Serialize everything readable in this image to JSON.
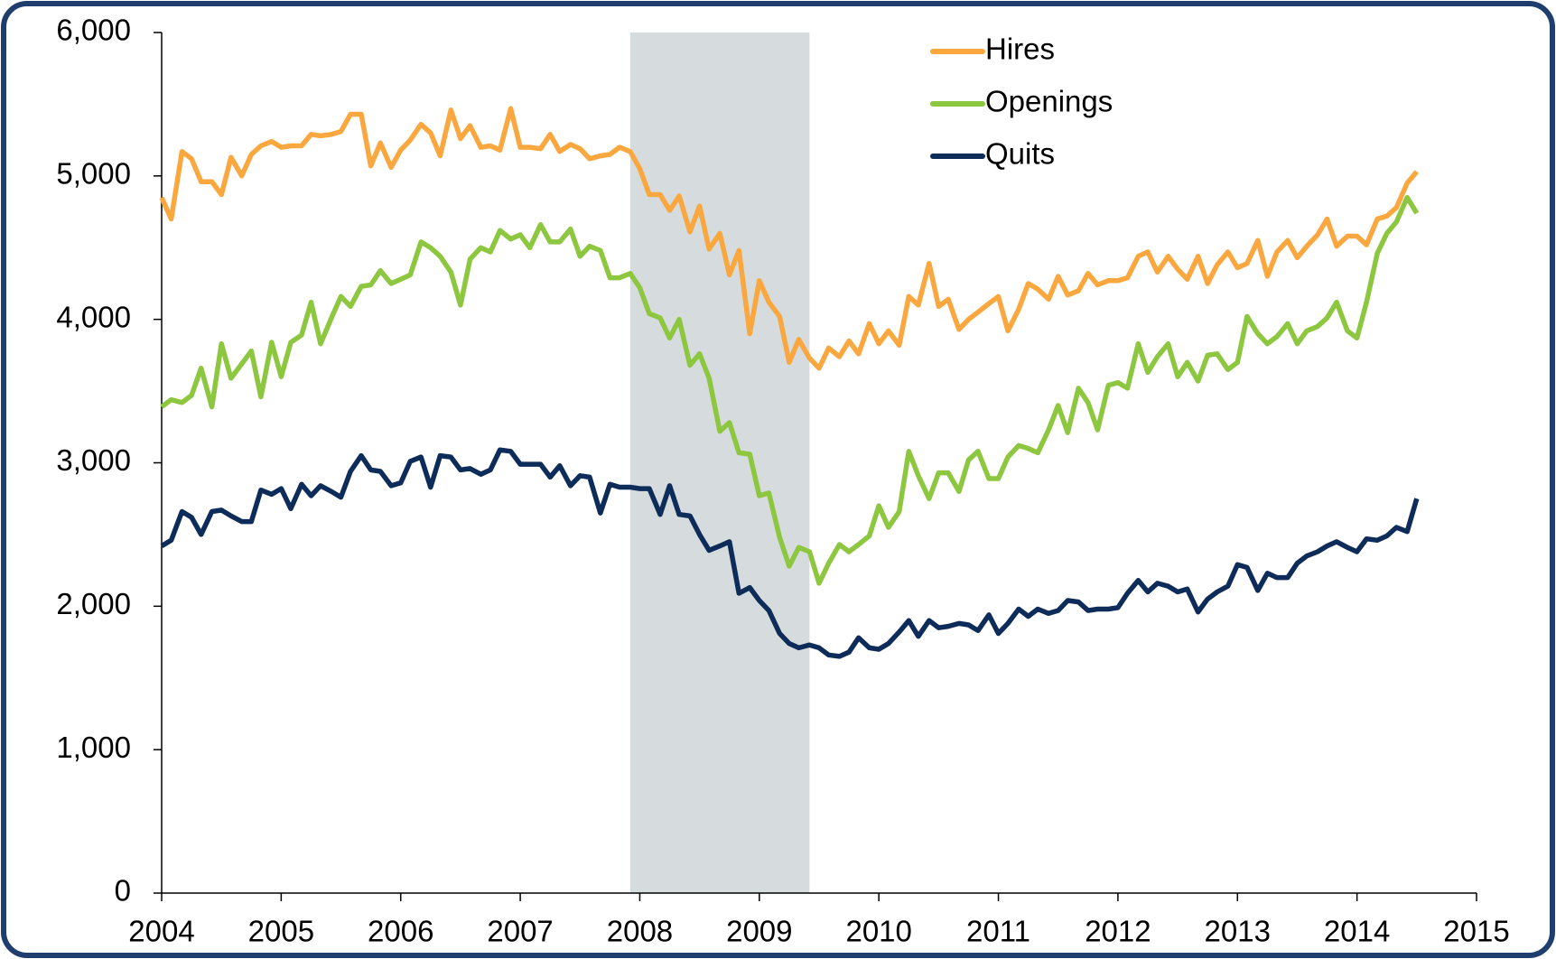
{
  "chart_data": {
    "type": "line",
    "x": [
      2004.0,
      2004.08,
      2004.17,
      2004.25,
      2004.33,
      2004.42,
      2004.5,
      2004.58,
      2004.67,
      2004.75,
      2004.83,
      2004.92,
      2005.0,
      2005.08,
      2005.17,
      2005.25,
      2005.33,
      2005.42,
      2005.5,
      2005.58,
      2005.67,
      2005.75,
      2005.83,
      2005.92,
      2006.0,
      2006.08,
      2006.17,
      2006.25,
      2006.33,
      2006.42,
      2006.5,
      2006.58,
      2006.67,
      2006.75,
      2006.83,
      2006.92,
      2007.0,
      2007.08,
      2007.17,
      2007.25,
      2007.33,
      2007.42,
      2007.5,
      2007.58,
      2007.67,
      2007.75,
      2007.83,
      2007.92,
      2008.0,
      2008.08,
      2008.17,
      2008.25,
      2008.33,
      2008.42,
      2008.5,
      2008.58,
      2008.67,
      2008.75,
      2008.83,
      2008.92,
      2009.0,
      2009.08,
      2009.17,
      2009.25,
      2009.33,
      2009.42,
      2009.5,
      2009.58,
      2009.67,
      2009.75,
      2009.83,
      2009.92,
      2010.0,
      2010.08,
      2010.17,
      2010.25,
      2010.33,
      2010.42,
      2010.5,
      2010.58,
      2010.67,
      2010.75,
      2010.83,
      2010.92,
      2011.0,
      2011.08,
      2011.17,
      2011.25,
      2011.33,
      2011.42,
      2011.5,
      2011.58,
      2011.67,
      2011.75,
      2011.83,
      2011.92,
      2012.0,
      2012.08,
      2012.17,
      2012.25,
      2012.33,
      2012.42,
      2012.5,
      2012.58,
      2012.67,
      2012.75,
      2012.83,
      2012.92,
      2013.0,
      2013.08,
      2013.17,
      2013.25,
      2013.33,
      2013.42,
      2013.5,
      2013.58,
      2013.67,
      2013.75,
      2013.83,
      2013.92,
      2014.0,
      2014.08,
      2014.17,
      2014.25,
      2014.33,
      2014.42,
      2014.5
    ],
    "series": [
      {
        "name": "Hires",
        "color": "#f9a73e",
        "values": [
          4850,
          4700,
          5170,
          5120,
          4960,
          4960,
          4870,
          5130,
          5000,
          5150,
          5210,
          5240,
          5200,
          5210,
          5210,
          5290,
          5280,
          5290,
          5310,
          5430,
          5430,
          5070,
          5230,
          5060,
          5180,
          5250,
          5360,
          5300,
          5140,
          5460,
          5260,
          5350,
          5200,
          5210,
          5180,
          5470,
          5200,
          5200,
          5190,
          5290,
          5170,
          5220,
          5190,
          5120,
          5140,
          5150,
          5200,
          5170,
          5050,
          4870,
          4870,
          4760,
          4860,
          4610,
          4790,
          4490,
          4600,
          4310,
          4480,
          3900,
          4270,
          4120,
          4020,
          3700,
          3860,
          3730,
          3660,
          3800,
          3740,
          3850,
          3760,
          3970,
          3830,
          3920,
          3820,
          4160,
          4100,
          4390,
          4090,
          4140,
          3930,
          4000,
          4050,
          4110,
          4160,
          3920,
          4070,
          4250,
          4210,
          4140,
          4300,
          4170,
          4200,
          4320,
          4240,
          4270,
          4270,
          4290,
          4440,
          4470,
          4330,
          4440,
          4350,
          4280,
          4440,
          4250,
          4380,
          4470,
          4360,
          4390,
          4550,
          4300,
          4470,
          4550,
          4430,
          4510,
          4590,
          4700,
          4510,
          4580,
          4580,
          4520,
          4700,
          4720,
          4780,
          4950,
          5030
        ]
      },
      {
        "name": "Openings",
        "color": "#8dc63f",
        "values": [
          3390,
          3440,
          3420,
          3470,
          3660,
          3390,
          3830,
          3590,
          3690,
          3780,
          3460,
          3840,
          3600,
          3840,
          3890,
          4120,
          3830,
          4010,
          4160,
          4090,
          4230,
          4240,
          4340,
          4250,
          4280,
          4310,
          4540,
          4500,
          4440,
          4330,
          4100,
          4420,
          4500,
          4470,
          4620,
          4560,
          4590,
          4500,
          4660,
          4540,
          4540,
          4630,
          4440,
          4510,
          4480,
          4290,
          4290,
          4320,
          4220,
          4040,
          4010,
          3870,
          4000,
          3680,
          3760,
          3590,
          3220,
          3280,
          3070,
          3060,
          2770,
          2790,
          2480,
          2280,
          2410,
          2380,
          2160,
          2300,
          2430,
          2380,
          2430,
          2490,
          2700,
          2550,
          2660,
          3080,
          2910,
          2750,
          2930,
          2930,
          2800,
          3020,
          3080,
          2890,
          2890,
          3040,
          3120,
          3100,
          3070,
          3230,
          3400,
          3210,
          3520,
          3420,
          3230,
          3540,
          3560,
          3520,
          3830,
          3630,
          3740,
          3830,
          3600,
          3700,
          3570,
          3750,
          3760,
          3650,
          3700,
          4020,
          3900,
          3830,
          3880,
          3970,
          3830,
          3920,
          3950,
          4010,
          4120,
          3920,
          3870,
          4120,
          4460,
          4600,
          4680,
          4850,
          4740
        ]
      },
      {
        "name": "Quits",
        "color": "#0d2c5a",
        "values": [
          2420,
          2460,
          2660,
          2620,
          2500,
          2660,
          2670,
          2630,
          2590,
          2590,
          2810,
          2780,
          2820,
          2680,
          2850,
          2770,
          2840,
          2800,
          2760,
          2940,
          3050,
          2950,
          2940,
          2840,
          2860,
          3010,
          3040,
          2830,
          3050,
          3040,
          2950,
          2960,
          2920,
          2950,
          3090,
          3080,
          2990,
          2990,
          2990,
          2900,
          2980,
          2840,
          2910,
          2900,
          2650,
          2850,
          2830,
          2830,
          2820,
          2820,
          2640,
          2840,
          2640,
          2630,
          2500,
          2390,
          2420,
          2450,
          2090,
          2130,
          2040,
          1970,
          1810,
          1740,
          1710,
          1730,
          1710,
          1660,
          1650,
          1680,
          1780,
          1710,
          1700,
          1740,
          1820,
          1900,
          1790,
          1900,
          1850,
          1860,
          1880,
          1870,
          1830,
          1940,
          1810,
          1880,
          1980,
          1930,
          1980,
          1950,
          1970,
          2040,
          2030,
          1970,
          1980,
          1980,
          1990,
          2090,
          2180,
          2100,
          2160,
          2140,
          2100,
          2120,
          1960,
          2050,
          2100,
          2140,
          2290,
          2270,
          2110,
          2230,
          2200,
          2200,
          2300,
          2350,
          2380,
          2420,
          2450,
          2410,
          2380,
          2470,
          2460,
          2490,
          2550,
          2520,
          2750
        ]
      }
    ],
    "xlim": [
      2004,
      2015
    ],
    "xticks": [
      2004,
      2005,
      2006,
      2007,
      2008,
      2009,
      2010,
      2011,
      2012,
      2013,
      2014,
      2015
    ],
    "ylim": [
      0,
      6000
    ],
    "yticks": [
      0,
      {
        "value": 1000,
        "label": "1,000"
      },
      {
        "value": 2000,
        "label": "2,000"
      },
      {
        "value": 3000,
        "label": "3,000"
      },
      {
        "value": 4000,
        "label": "4,000"
      },
      {
        "value": 5000,
        "label": "5,000"
      },
      {
        "value": 6000,
        "label": "6,000"
      }
    ],
    "shaded_ranges": [
      [
        2007.92,
        2009.42
      ]
    ],
    "shade_color": "#d6dcdd",
    "legend": "top"
  }
}
